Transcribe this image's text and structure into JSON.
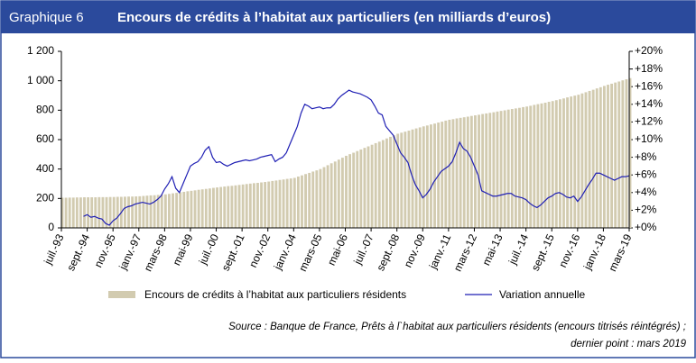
{
  "chart_data": {
    "type": "combo",
    "label": "Graphique 6",
    "title": "Encours de crédits à l’habitat aux particuliers (en milliards d’euros)",
    "source": [
      "Source : Banque de France, Prêts à l`habitat aux particuliers résidents (encours titrisés réintégrés) ;",
      "dernier point : mars 2019"
    ],
    "categories": [
      "juil.-93",
      null,
      null,
      null,
      null,
      null,
      null,
      "sept.-94",
      null,
      null,
      null,
      null,
      null,
      null,
      "nov.-95",
      null,
      null,
      null,
      null,
      null,
      null,
      "janv.-97",
      null,
      null,
      null,
      null,
      null,
      null,
      "mars-98",
      null,
      null,
      null,
      null,
      null,
      null,
      "mai-99",
      null,
      null,
      null,
      null,
      null,
      null,
      "juil.-00",
      null,
      null,
      null,
      null,
      null,
      null,
      "sept.-01",
      null,
      null,
      null,
      null,
      null,
      null,
      "nov.-02",
      null,
      null,
      null,
      null,
      null,
      null,
      "janv.-04",
      null,
      null,
      null,
      null,
      null,
      null,
      "mars-05",
      null,
      null,
      null,
      null,
      null,
      null,
      "mai-06",
      null,
      null,
      null,
      null,
      null,
      null,
      "juil.-07",
      null,
      null,
      null,
      null,
      null,
      null,
      "sept.-08",
      null,
      null,
      null,
      null,
      null,
      null,
      "nov.-09",
      null,
      null,
      null,
      null,
      null,
      null,
      "janv.-11",
      null,
      null,
      null,
      null,
      null,
      null,
      "mars-12",
      null,
      null,
      null,
      null,
      null,
      null,
      "mai-13",
      null,
      null,
      null,
      null,
      null,
      null,
      "juil.-14",
      null,
      null,
      null,
      null,
      null,
      null,
      "sept.-15",
      null,
      null,
      null,
      null,
      null,
      null,
      "nov.-16",
      null,
      null,
      null,
      null,
      null,
      null,
      "janv.-18",
      null,
      null,
      null,
      null,
      null,
      null,
      "mars-19"
    ],
    "series": [
      {
        "name": "Encours de crédits à l’habitat aux particuliers résidents",
        "type": "bar",
        "axis": "y",
        "color": "#d2cbb0",
        "values": [
          205,
          205,
          206,
          206,
          207,
          207,
          208,
          208,
          208,
          208,
          209,
          209,
          209,
          210,
          210,
          211,
          211,
          212,
          213,
          213,
          214,
          215,
          217,
          219,
          221,
          222,
          224,
          226,
          228,
          231,
          235,
          238,
          242,
          245,
          249,
          252,
          255,
          259,
          262,
          265,
          268,
          272,
          275,
          278,
          281,
          284,
          286,
          289,
          292,
          295,
          298,
          301,
          304,
          306,
          309,
          312,
          315,
          319,
          322,
          326,
          329,
          333,
          336,
          340,
          349,
          357,
          366,
          374,
          383,
          391,
          400,
          413,
          426,
          439,
          451,
          464,
          477,
          490,
          501,
          511,
          522,
          533,
          544,
          554,
          565,
          576,
          586,
          597,
          608,
          619,
          629,
          640,
          647,
          654,
          661,
          669,
          676,
          683,
          690,
          696,
          703,
          709,
          716,
          722,
          729,
          735,
          739,
          744,
          748,
          752,
          756,
          761,
          765,
          769,
          774,
          778,
          782,
          786,
          791,
          795,
          799,
          804,
          808,
          812,
          816,
          821,
          825,
          830,
          836,
          841,
          846,
          851,
          857,
          862,
          868,
          874,
          880,
          887,
          893,
          899,
          905,
          914,
          922,
          931,
          939,
          948,
          956,
          965,
          973,
          980,
          988,
          995,
          1003,
          1010,
          1018
        ]
      },
      {
        "name": "Variation annuelle",
        "type": "line",
        "axis": "y2",
        "color": "#1f1fb4",
        "values": [
          null,
          null,
          null,
          null,
          null,
          null,
          1.3,
          1.5,
          1.2,
          1.3,
          1.1,
          1.0,
          0.5,
          0.3,
          0.8,
          1.1,
          1.6,
          2.2,
          2.4,
          2.5,
          2.7,
          2.8,
          2.9,
          2.8,
          2.7,
          2.9,
          3.2,
          3.6,
          4.4,
          5.0,
          5.8,
          4.5,
          4.0,
          5.0,
          6.0,
          7.0,
          7.3,
          7.5,
          8.0,
          8.8,
          9.2,
          8.0,
          7.4,
          7.5,
          7.2,
          7.0,
          7.2,
          7.4,
          7.5,
          7.6,
          7.7,
          7.6,
          7.7,
          7.8,
          8.0,
          8.1,
          8.2,
          8.3,
          7.5,
          7.8,
          8.0,
          8.5,
          9.5,
          10.5,
          11.5,
          13.0,
          14.0,
          13.8,
          13.5,
          13.6,
          13.7,
          13.5,
          13.6,
          13.6,
          14.0,
          14.6,
          15.0,
          15.3,
          15.6,
          15.4,
          15.3,
          15.2,
          15.0,
          14.8,
          14.5,
          13.8,
          13.0,
          12.8,
          11.5,
          11.0,
          10.5,
          9.5,
          8.5,
          8.0,
          7.4,
          6.0,
          4.9,
          4.2,
          3.4,
          3.8,
          4.4,
          5.2,
          5.8,
          6.4,
          6.7,
          7.0,
          7.5,
          8.5,
          9.7,
          9.0,
          8.7,
          8.0,
          7.0,
          6.0,
          4.2,
          4.0,
          3.8,
          3.6,
          3.6,
          3.7,
          3.8,
          3.9,
          3.9,
          3.6,
          3.5,
          3.4,
          3.2,
          2.8,
          2.5,
          2.3,
          2.6,
          3.0,
          3.4,
          3.6,
          3.9,
          4.0,
          3.8,
          3.5,
          3.4,
          3.6,
          3.0,
          3.5,
          4.2,
          4.9,
          5.5,
          6.2,
          6.2,
          6.0,
          5.8,
          5.6,
          5.4,
          5.6,
          5.8,
          5.8,
          5.9
        ]
      }
    ],
    "ylim": [
      0,
      1200
    ],
    "yticks": [
      0,
      200,
      400,
      600,
      800,
      {
        "value": 1000,
        "label": "1 000"
      },
      {
        "value": 1200,
        "label": "1 200"
      }
    ],
    "y2lim": [
      0,
      20
    ],
    "y2ticks": [
      {
        "value": 0,
        "label": "+0%"
      },
      {
        "value": 2,
        "label": "+2%"
      },
      {
        "value": 4,
        "label": "+4%"
      },
      {
        "value": 6,
        "label": "+6%"
      },
      {
        "value": 8,
        "label": "+8%"
      },
      {
        "value": 10,
        "label": "+10%"
      },
      {
        "value": 12,
        "label": "+12%"
      },
      {
        "value": 14,
        "label": "+14%"
      },
      {
        "value": 16,
        "label": "+16%"
      },
      {
        "value": 18,
        "label": "+18%"
      },
      {
        "value": 20,
        "label": "+20%"
      }
    ]
  }
}
